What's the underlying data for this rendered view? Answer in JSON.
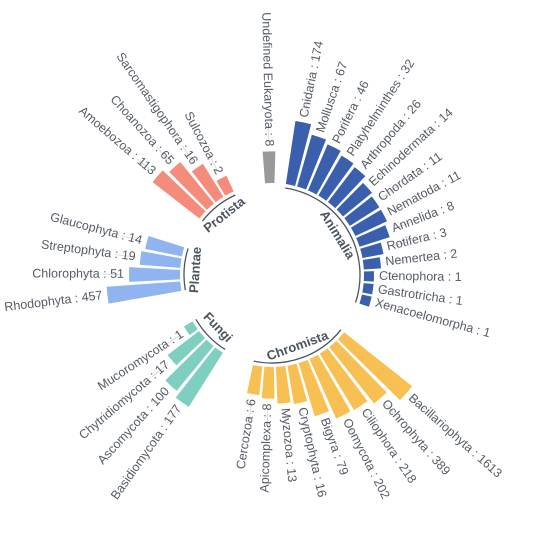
{
  "chart_data": {
    "type": "bar",
    "layout": "circular",
    "title": "",
    "scale": "log",
    "groups": [
      {
        "name": "Animalia",
        "color": "#3a5fad",
        "categories": [
          {
            "name": "Cnidaria",
            "value": 174
          },
          {
            "name": "Mollusca",
            "value": 67
          },
          {
            "name": "Porifera",
            "value": 46
          },
          {
            "name": "Platyhelminthes",
            "value": 32
          },
          {
            "name": "Arthropoda",
            "value": 26
          },
          {
            "name": "Echinodermata",
            "value": 14
          },
          {
            "name": "Chordata",
            "value": 11
          },
          {
            "name": "Nematoda",
            "value": 11
          },
          {
            "name": "Annelida",
            "value": 8
          },
          {
            "name": "Rotifera",
            "value": 3
          },
          {
            "name": "Nemertea",
            "value": 2
          },
          {
            "name": "Ctenophora",
            "value": 1
          },
          {
            "name": "Gastrotricha",
            "value": 1
          },
          {
            "name": "Xenacoelomorpha",
            "value": 1
          }
        ]
      },
      {
        "name": "Chromista",
        "color": "#f8c052",
        "categories": [
          {
            "name": "Bacillariophyta",
            "value": 1613
          },
          {
            "name": "Ochrophyta",
            "value": 389
          },
          {
            "name": "Ciliophora",
            "value": 218
          },
          {
            "name": "Oomycota",
            "value": 202
          },
          {
            "name": "Bigyra",
            "value": 79
          },
          {
            "name": "Cryptophyta",
            "value": 16
          },
          {
            "name": "Myzozoa",
            "value": 13
          },
          {
            "name": "Apicomplexa",
            "value": 8
          },
          {
            "name": "Cercozoa",
            "value": 6
          }
        ]
      },
      {
        "name": "Fungi",
        "color": "#7fcfc0",
        "categories": [
          {
            "name": "Basidiomycota",
            "value": 177
          },
          {
            "name": "Ascomycota",
            "value": 100
          },
          {
            "name": "Chytridiomycota",
            "value": 17
          },
          {
            "name": "Mucoromycota",
            "value": 1
          }
        ]
      },
      {
        "name": "Plantae",
        "color": "#8fb4ef",
        "categories": [
          {
            "name": "Rhodophyta",
            "value": 457
          },
          {
            "name": "Chlorophyta",
            "value": 51
          },
          {
            "name": "Streptophyta",
            "value": 19
          },
          {
            "name": "Glaucophyta",
            "value": 14
          }
        ]
      },
      {
        "name": "Protista",
        "color": "#f58b7b",
        "categories": [
          {
            "name": "Amoebozoa",
            "value": 113
          },
          {
            "name": "Choanozoa",
            "value": 65
          },
          {
            "name": "Sarcomastigophora",
            "value": 16
          },
          {
            "name": "Sulcozoa",
            "value": 2
          }
        ]
      },
      {
        "name": "",
        "color": "#999999",
        "categories": [
          {
            "name": "Undefined Eukaryota",
            "value": 8
          }
        ]
      }
    ]
  }
}
